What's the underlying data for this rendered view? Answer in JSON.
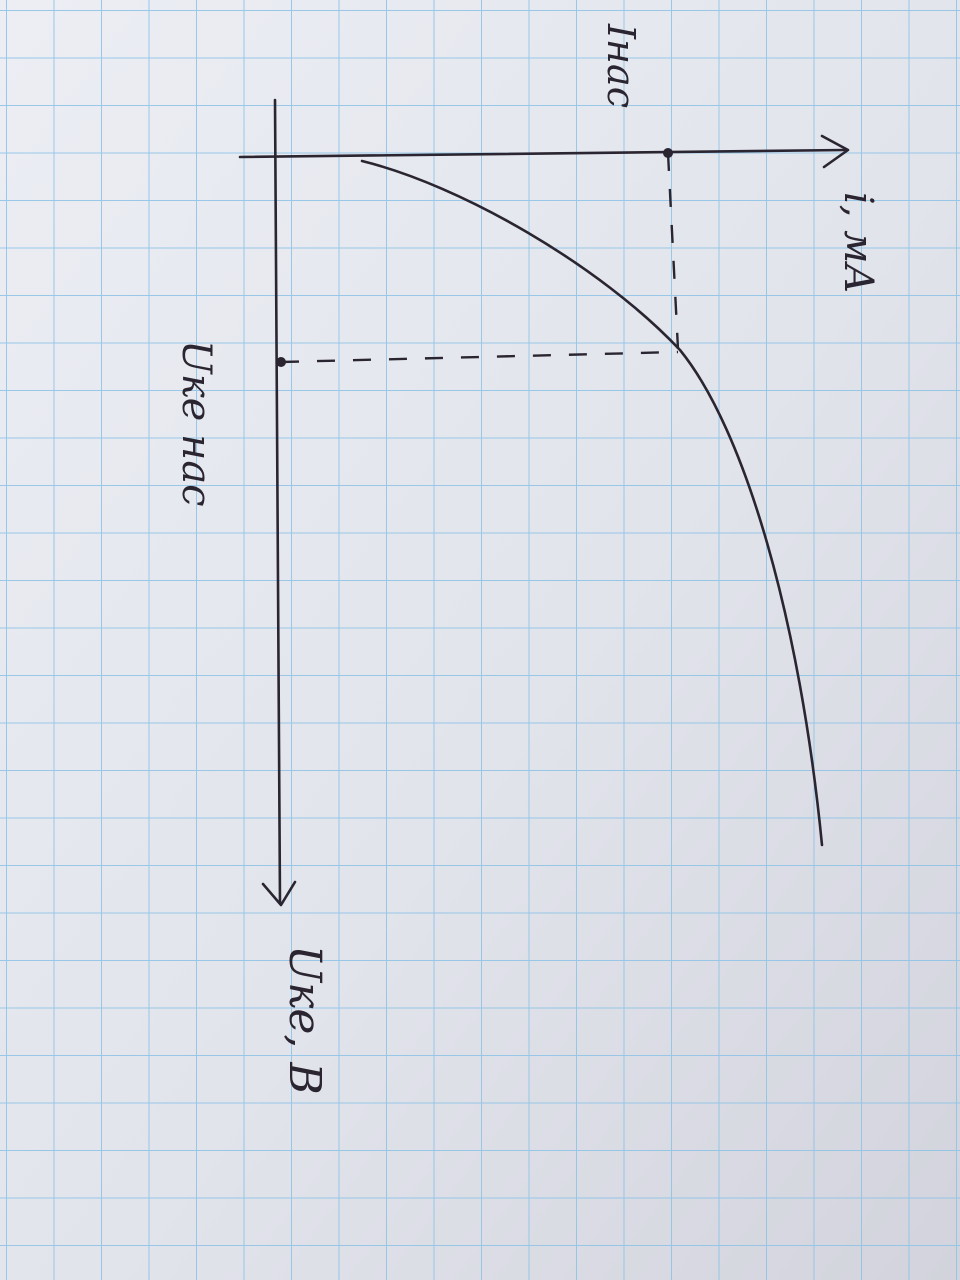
{
  "labels": {
    "y_axis": "i, мА",
    "y_mark": "Iнас",
    "x_axis": "Uке, В",
    "x_mark": "Uке нас"
  },
  "colors": {
    "paper": "#e4e6ee",
    "grid": "#8fc3e6",
    "ink": "#2a2530"
  }
}
